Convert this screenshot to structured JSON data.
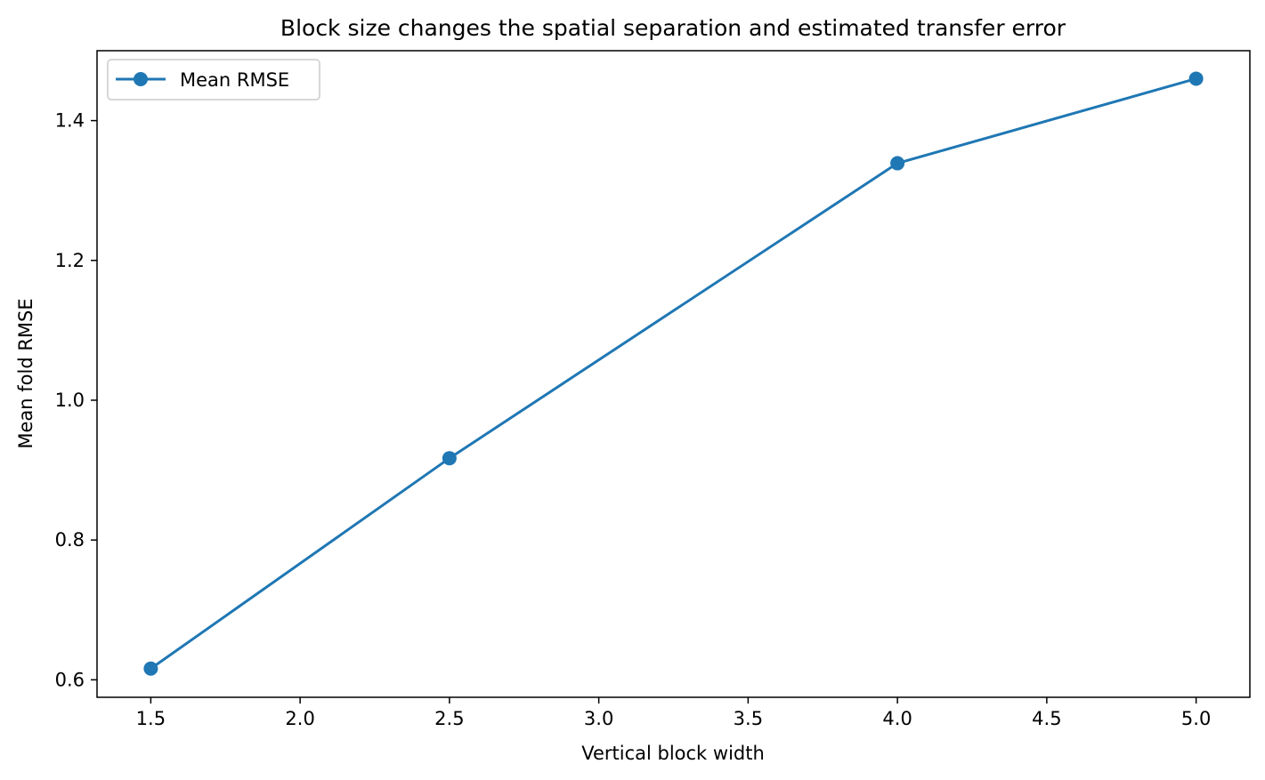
{
  "chart_data": {
    "type": "line",
    "title": "Block size changes the spatial separation and estimated transfer error",
    "xlabel": "Vertical block width",
    "ylabel": "Mean fold RMSE",
    "xlim": [
      1.32,
      5.18
    ],
    "ylim": [
      0.575,
      1.5
    ],
    "xticks": [
      1.5,
      2.0,
      2.5,
      3.0,
      3.5,
      4.0,
      4.5,
      5.0
    ],
    "xtick_labels": [
      "1.5",
      "2.0",
      "2.5",
      "3.0",
      "3.5",
      "4.0",
      "4.5",
      "5.0"
    ],
    "yticks": [
      0.6,
      0.8,
      1.0,
      1.2,
      1.4
    ],
    "ytick_labels": [
      "0.6",
      "0.8",
      "1.0",
      "1.2",
      "1.4"
    ],
    "grid": false,
    "legend_position": "top-left",
    "series": [
      {
        "name": "Mean RMSE",
        "color": "#1f77b4",
        "marker": "circle",
        "x": [
          1.5,
          2.5,
          4.0,
          5.0
        ],
        "y": [
          0.616,
          0.917,
          1.339,
          1.46
        ]
      }
    ]
  }
}
